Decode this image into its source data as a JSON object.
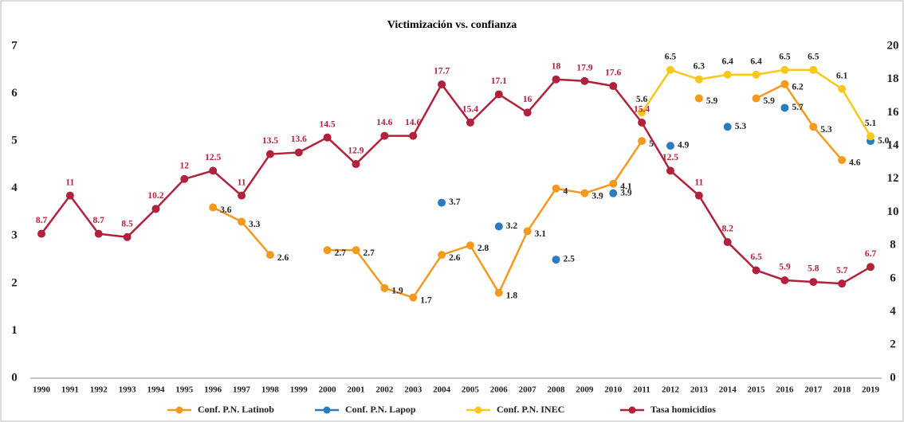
{
  "chart_data": {
    "type": "line",
    "title": "Victimización vs. confianza",
    "categories": [
      "1990",
      "1991",
      "1992",
      "1993",
      "1994",
      "1995",
      "1996",
      "1997",
      "1998",
      "1999",
      "2000",
      "2001",
      "2002",
      "2003",
      "2004",
      "2005",
      "2006",
      "2007",
      "2008",
      "2009",
      "2010",
      "2011",
      "2012",
      "2013",
      "2014",
      "2015",
      "2016",
      "2017",
      "2018",
      "2019"
    ],
    "ylim": [
      0,
      7
    ],
    "yticks": [
      0,
      1,
      2,
      3,
      4,
      5,
      6,
      7
    ],
    "y2lim": [
      0,
      20
    ],
    "y2ticks": [
      0,
      2,
      4,
      6,
      8,
      10,
      12,
      14,
      16,
      18,
      20
    ],
    "legend": "bottom",
    "series": [
      {
        "name": "Conf. P.N. Latinob",
        "color": "#f39a1e",
        "values": [
          null,
          null,
          null,
          null,
          null,
          null,
          3.6,
          3.3,
          2.6,
          null,
          2.7,
          2.7,
          1.9,
          1.7,
          2.6,
          2.8,
          1.8,
          3.1,
          4,
          3.9,
          4.1,
          5,
          null,
          5.9,
          null,
          5.9,
          6.2,
          5.3,
          4.6,
          null
        ]
      },
      {
        "name": "Conf. P.N. Lapop",
        "color": "#2b7bbf",
        "values": [
          null,
          null,
          null,
          null,
          null,
          null,
          null,
          null,
          null,
          null,
          null,
          null,
          null,
          null,
          3.7,
          null,
          3.2,
          null,
          2.5,
          null,
          3.9,
          null,
          4.9,
          null,
          5.3,
          null,
          5.7,
          null,
          null,
          5
        ],
        "value_labels": [
          null,
          null,
          null,
          null,
          null,
          null,
          null,
          null,
          null,
          null,
          null,
          null,
          null,
          null,
          "3.7",
          null,
          "3.2",
          null,
          "2.5",
          null,
          "3.9",
          null,
          "4.9",
          null,
          "5.3",
          null,
          "5.7",
          null,
          null,
          "5.0"
        ]
      },
      {
        "name": "Conf. P.N. INEC",
        "color": "#f7c81b",
        "values": [
          null,
          null,
          null,
          null,
          null,
          null,
          null,
          null,
          null,
          null,
          null,
          null,
          null,
          null,
          null,
          null,
          null,
          null,
          null,
          null,
          null,
          5.6,
          6.5,
          6.3,
          6.4,
          6.4,
          6.5,
          6.5,
          6.1,
          5.1
        ]
      },
      {
        "name": "Tasa homicidios",
        "color": "#b2213b",
        "axis": "y2",
        "values": [
          8.7,
          11,
          8.7,
          8.5,
          10.2,
          12,
          12.5,
          11,
          13.5,
          13.6,
          14.5,
          12.9,
          14.6,
          14.6,
          17.7,
          15.4,
          17.1,
          16,
          18,
          17.9,
          17.6,
          15.4,
          12.5,
          11,
          8.2,
          6.5,
          5.9,
          5.8,
          5.7,
          6.7
        ]
      }
    ]
  }
}
